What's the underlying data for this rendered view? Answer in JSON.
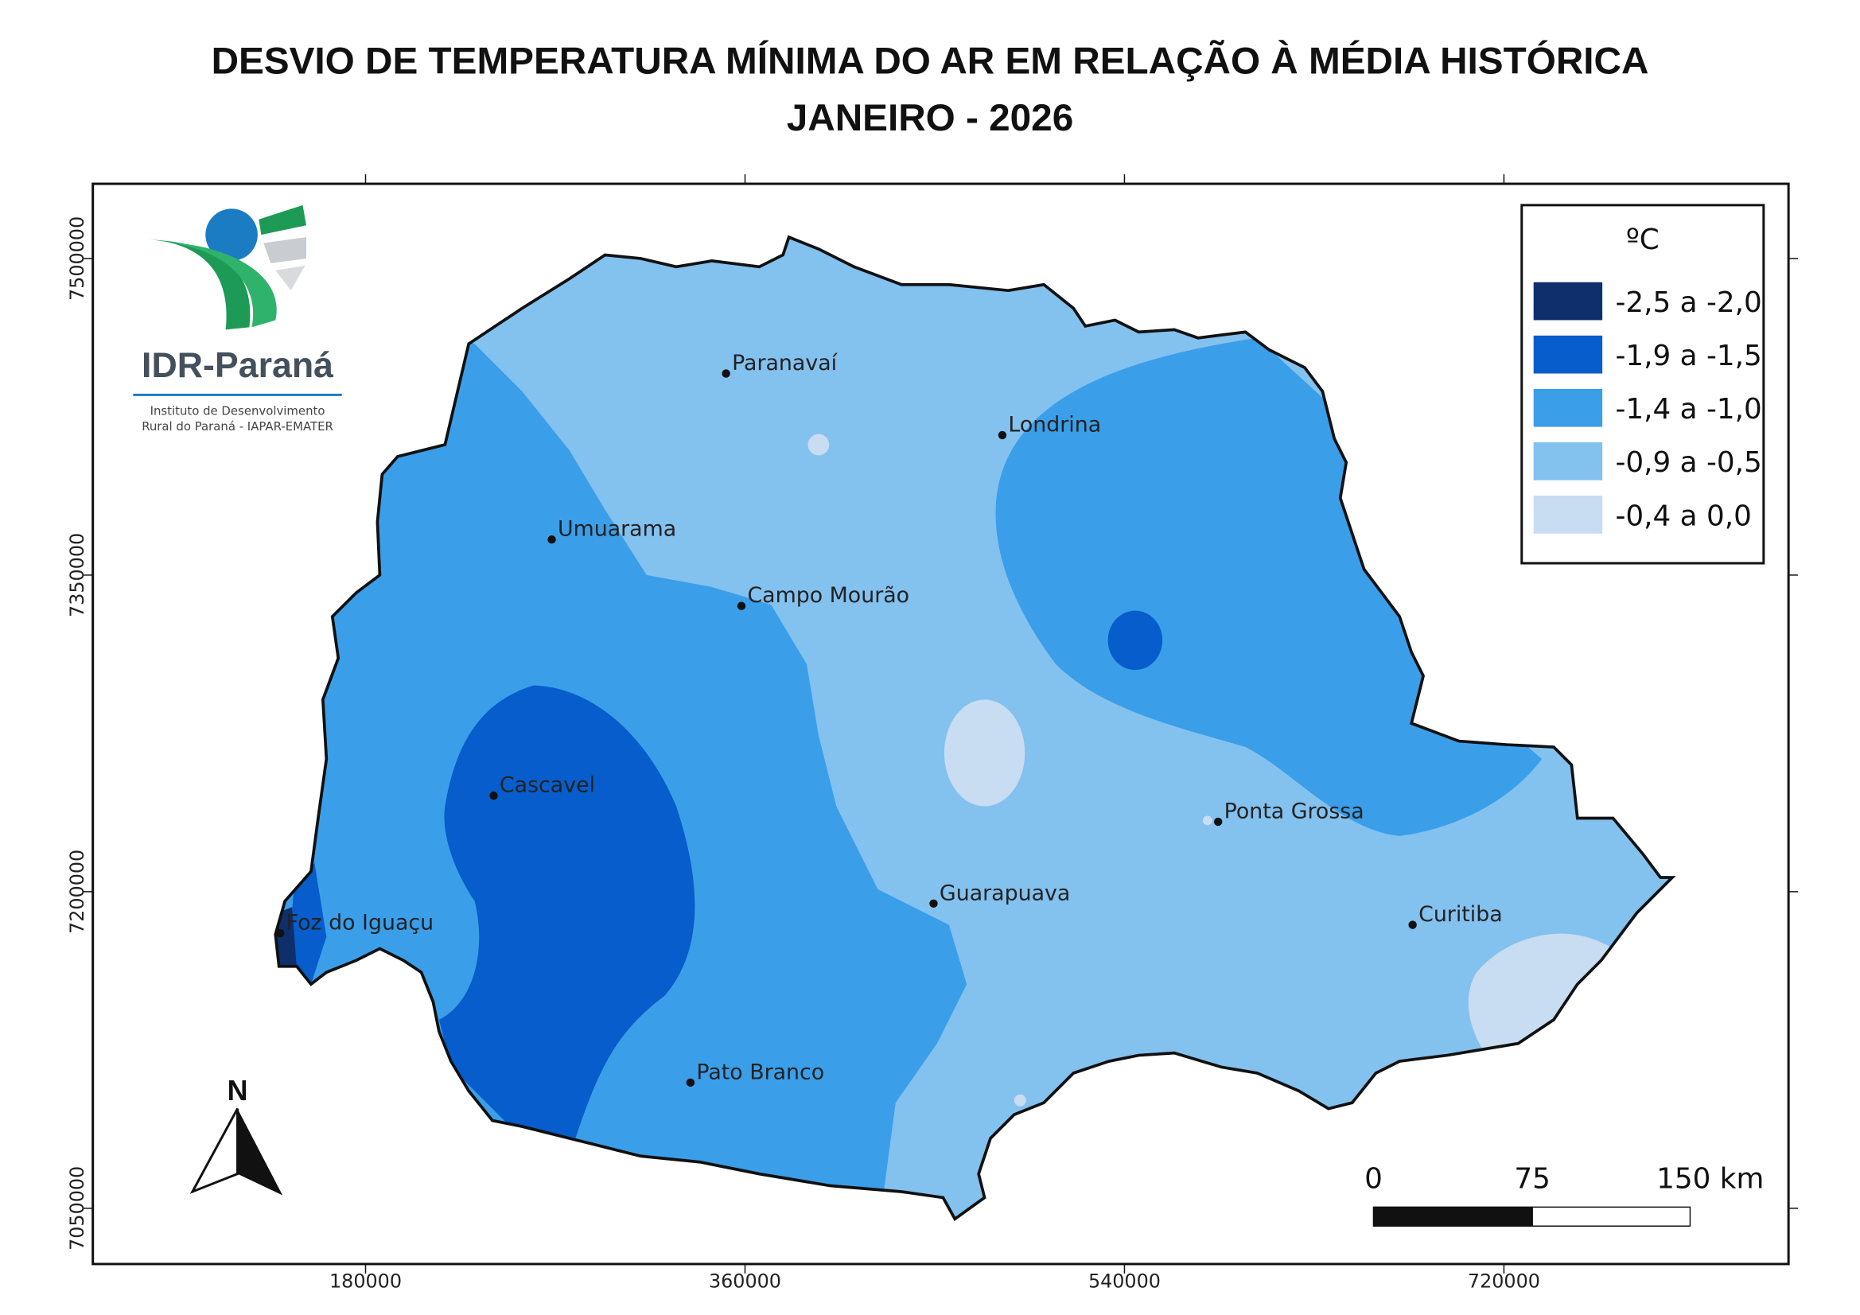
{
  "header": {
    "title": "DESVIO DE TEMPERATURA MÍNIMA DO AR EM RELAÇÃO À MÉDIA HISTÓRICA",
    "subtitle": "JANEIRO - 2026"
  },
  "logo": {
    "name": "IDR-Paraná",
    "line_1": "Instituto de Desenvolvimento",
    "line_2": "Rural do Paraná - IAPAR-EMATER"
  },
  "map": {
    "x_ticks": [
      180000,
      360000,
      540000,
      720000
    ],
    "y_ticks": [
      7500000,
      7350000,
      7200000,
      7050000
    ],
    "cities": [
      "Paranavaí",
      "Londrina",
      "Umuarama",
      "Campo Mourão",
      "Cascavel",
      "Ponta Grossa",
      "Guarapuava",
      "Foz do Iguaçu",
      "Curitiba",
      "Pato Branco"
    ]
  },
  "legend": {
    "title": "ºC",
    "items": [
      {
        "label": "-2,5 a -2,0",
        "color": "#0e2f6c"
      },
      {
        "label": "-1,9 a -1,5",
        "color": "#065dcb"
      },
      {
        "label": "-1,4 a -1,0",
        "color": "#3b9ee9"
      },
      {
        "label": "-0,9 a -0,5",
        "color": "#83c1ef"
      },
      {
        "label": "-0,4 a 0,0",
        "color": "#c8dcf2"
      }
    ]
  },
  "scale_bar": {
    "labels": [
      "0",
      "75",
      "150 km"
    ]
  },
  "north": "N"
}
